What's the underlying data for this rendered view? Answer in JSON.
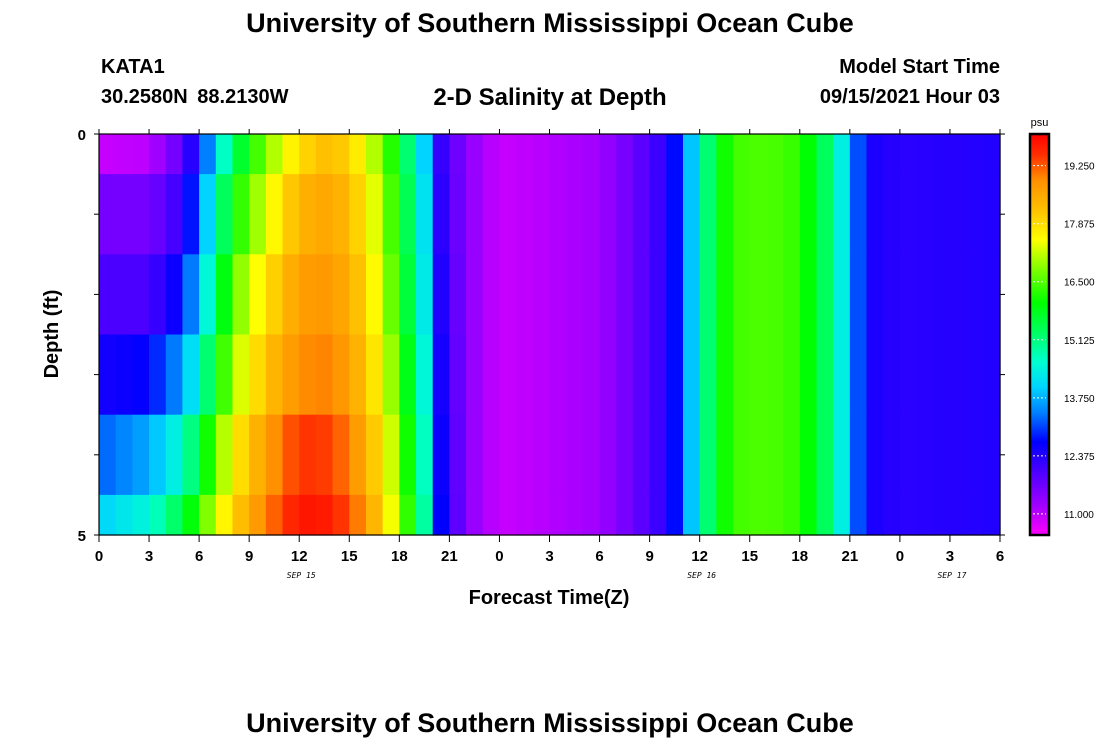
{
  "header": {
    "title": "University of Southern Mississippi Ocean Cube",
    "station_id": "KATA1",
    "station_coords": "30.2580N  88.2130W",
    "chart_title": "2-D Salinity at Depth",
    "model_start_label": "Model Start Time",
    "model_start_time": "09/15/2021 Hour 03"
  },
  "footer": {
    "title": "University of Southern Mississippi Ocean Cube"
  },
  "chart_data": {
    "type": "heatmap",
    "title": "2-D Salinity at Depth",
    "xlabel": "Forecast Time(Z)",
    "ylabel": "Depth (ft)",
    "x_tick_labels": [
      "0",
      "3",
      "6",
      "9",
      "12",
      "15",
      "18",
      "21",
      "0",
      "3",
      "6",
      "9",
      "12",
      "15",
      "18",
      "21",
      "0",
      "3",
      "6"
    ],
    "x_tick_hours": [
      0,
      3,
      6,
      9,
      12,
      15,
      18,
      21,
      24,
      27,
      30,
      33,
      36,
      39,
      42,
      45,
      48,
      51,
      54
    ],
    "xlim_hours": [
      0,
      54
    ],
    "date_labels": [
      {
        "label": "SEP 15",
        "hour": 12
      },
      {
        "label": "SEP 16",
        "hour": 36
      },
      {
        "label": "SEP 17",
        "hour": 51
      }
    ],
    "y_tick_labels": [
      "0",
      "5"
    ],
    "ylim": [
      0,
      5
    ],
    "depth_rows": [
      {
        "depth_range": [
          0,
          0.5
        ],
        "anchors_hour": [
          0,
          3,
          5,
          6.5,
          8,
          10,
          12,
          14,
          16,
          18,
          19.5,
          20.5,
          22,
          24,
          30,
          32,
          34,
          35,
          36,
          37,
          38,
          40,
          42,
          44,
          46,
          48,
          54
        ],
        "anchors_psu": [
          10.9,
          11.0,
          11.8,
          13.4,
          15.3,
          16.8,
          17.9,
          18.3,
          17.5,
          15.8,
          14.0,
          12.2,
          11.4,
          10.9,
          11.2,
          11.7,
          12.3,
          13.2,
          14.6,
          15.8,
          16.4,
          16.5,
          16.3,
          15.0,
          12.5,
          12.3,
          12.4
        ]
      },
      {
        "depth_range": [
          0.5,
          1.5
        ],
        "anchors_hour": [
          0,
          3,
          5,
          6.5,
          8,
          10,
          12,
          14,
          16,
          18,
          19.5,
          20.5,
          22,
          24,
          30,
          32,
          34,
          35,
          36,
          37,
          38,
          40,
          42,
          44,
          46,
          48,
          54
        ],
        "anchors_psu": [
          11.6,
          11.6,
          12.2,
          14.0,
          16.0,
          17.3,
          18.4,
          18.6,
          17.8,
          16.0,
          14.2,
          12.3,
          11.4,
          10.9,
          11.2,
          11.7,
          12.3,
          13.2,
          14.6,
          15.8,
          16.4,
          16.5,
          16.3,
          15.0,
          12.5,
          12.3,
          12.4
        ]
      },
      {
        "depth_range": [
          1.5,
          2.5
        ],
        "anchors_hour": [
          0,
          3,
          5,
          6.5,
          8,
          10,
          12,
          14,
          16,
          18,
          19.5,
          20.5,
          22,
          24,
          30,
          32,
          34,
          35,
          36,
          37,
          38,
          40,
          42,
          44,
          46,
          48,
          54
        ],
        "anchors_psu": [
          12.0,
          12.0,
          12.8,
          14.5,
          16.6,
          17.8,
          18.7,
          18.8,
          18.0,
          16.2,
          14.3,
          12.4,
          11.4,
          10.9,
          11.2,
          11.7,
          12.3,
          13.2,
          14.6,
          15.8,
          16.4,
          16.5,
          16.3,
          15.0,
          12.5,
          12.3,
          12.4
        ]
      },
      {
        "depth_range": [
          2.5,
          3.5
        ],
        "anchors_hour": [
          0,
          3,
          5,
          6.5,
          8,
          10,
          12,
          14,
          16,
          18,
          19.5,
          20.5,
          22,
          24,
          30,
          32,
          34,
          35,
          36,
          37,
          38,
          40,
          42,
          44,
          46,
          48,
          54
        ],
        "anchors_psu": [
          12.5,
          12.7,
          13.6,
          15.2,
          17.0,
          18.2,
          18.9,
          19.0,
          18.2,
          16.5,
          14.5,
          12.5,
          11.4,
          10.9,
          11.2,
          11.7,
          12.3,
          13.2,
          14.6,
          15.8,
          16.4,
          16.5,
          16.3,
          15.0,
          12.5,
          12.3,
          12.4
        ]
      },
      {
        "depth_range": [
          3.5,
          4.5
        ],
        "anchors_hour": [
          0,
          3,
          5,
          6.5,
          8,
          10,
          12,
          14,
          16,
          18,
          19.5,
          20.5,
          22,
          24,
          30,
          32,
          34,
          35,
          36,
          37,
          38,
          40,
          42,
          44,
          46,
          48,
          54
        ],
        "anchors_psu": [
          13.2,
          13.7,
          14.6,
          16.1,
          17.6,
          18.7,
          19.5,
          19.4,
          18.5,
          16.8,
          14.7,
          12.6,
          11.4,
          10.9,
          11.2,
          11.7,
          12.3,
          13.2,
          14.6,
          15.8,
          16.4,
          16.5,
          16.3,
          15.0,
          12.5,
          12.3,
          12.4
        ]
      },
      {
        "depth_range": [
          4.5,
          5
        ],
        "anchors_hour": [
          0,
          3,
          5,
          6.5,
          8,
          10,
          12,
          14,
          16,
          18,
          19.5,
          20.5,
          22,
          24,
          30,
          32,
          34,
          35,
          36,
          37,
          38,
          40,
          42,
          44,
          46,
          48,
          54
        ],
        "anchors_psu": [
          14.0,
          14.5,
          15.5,
          16.8,
          18.0,
          19.0,
          19.8,
          19.7,
          18.8,
          17.0,
          14.9,
          12.7,
          11.4,
          10.9,
          11.2,
          11.7,
          12.3,
          13.2,
          14.6,
          15.8,
          16.4,
          16.5,
          16.3,
          15.0,
          12.5,
          12.3,
          12.4
        ]
      }
    ],
    "colorbar": {
      "unit": "psu",
      "tick_labels": [
        "11.000",
        "12.375",
        "13.750",
        "15.125",
        "16.500",
        "17.875",
        "19.250"
      ],
      "tick_values": [
        11.0,
        12.375,
        13.75,
        15.125,
        16.5,
        17.875,
        19.25
      ],
      "range": [
        10.5,
        20.0
      ]
    },
    "colormap": [
      {
        "v": 10.5,
        "c": "#ff00ff"
      },
      {
        "v": 11.2,
        "c": "#a000ff"
      },
      {
        "v": 12.0,
        "c": "#4b00ff"
      },
      {
        "v": 12.7,
        "c": "#0000ff"
      },
      {
        "v": 13.4,
        "c": "#0080ff"
      },
      {
        "v": 14.0,
        "c": "#00d4ff"
      },
      {
        "v": 14.6,
        "c": "#00ffd0"
      },
      {
        "v": 15.3,
        "c": "#00ff60"
      },
      {
        "v": 16.0,
        "c": "#00ff00"
      },
      {
        "v": 16.8,
        "c": "#80ff00"
      },
      {
        "v": 17.5,
        "c": "#ffff00"
      },
      {
        "v": 18.2,
        "c": "#ffc000"
      },
      {
        "v": 18.9,
        "c": "#ff9000"
      },
      {
        "v": 19.5,
        "c": "#ff3000"
      },
      {
        "v": 20.0,
        "c": "#ff0000"
      }
    ]
  }
}
